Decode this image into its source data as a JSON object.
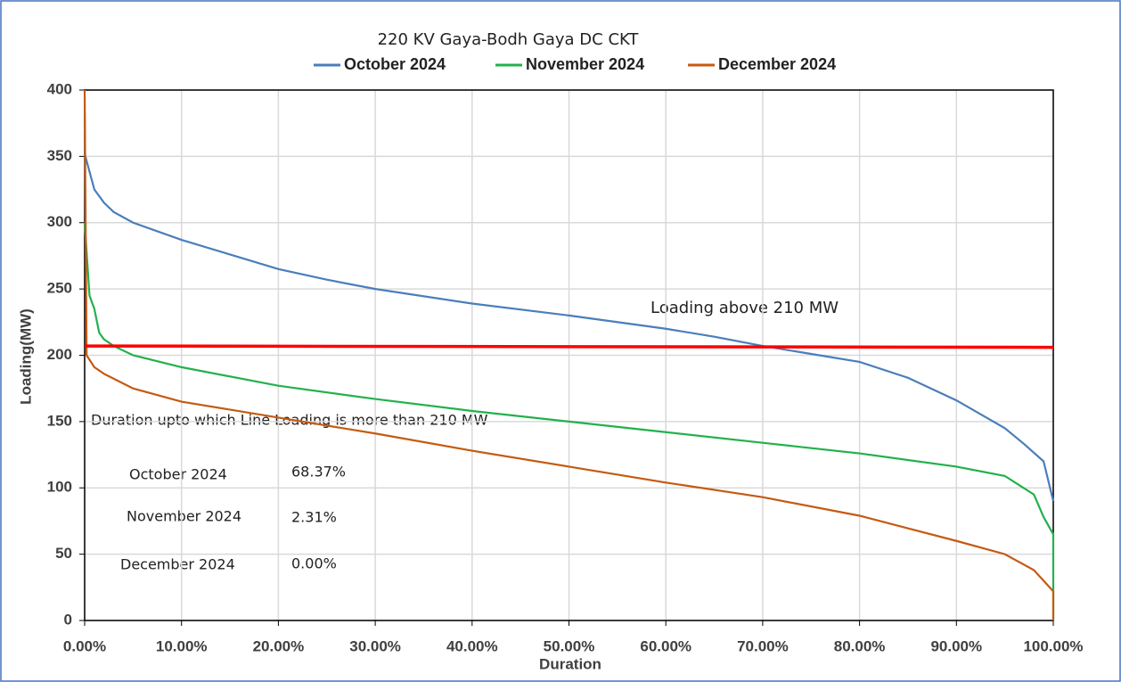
{
  "chart_data": {
    "type": "line",
    "title": "220 KV Gaya-Bodh Gaya DC CKT",
    "x_label": "Duration",
    "y_label": "Loading(MW)",
    "xlim": [
      0,
      100
    ],
    "ylim": [
      0,
      400
    ],
    "xticks": [
      {
        "value": 0,
        "label": "0.00%"
      },
      {
        "value": 10,
        "label": "10.00%"
      },
      {
        "value": 20,
        "label": "20.00%"
      },
      {
        "value": 30,
        "label": "30.00%"
      },
      {
        "value": 40,
        "label": "40.00%"
      },
      {
        "value": 50,
        "label": "50.00%"
      },
      {
        "value": 60,
        "label": "60.00%"
      },
      {
        "value": 70,
        "label": "70.00%"
      },
      {
        "value": 80,
        "label": "80.00%"
      },
      {
        "value": 90,
        "label": "90.00%"
      },
      {
        "value": 100,
        "label": "100.00%"
      }
    ],
    "yticks": [
      0,
      50,
      100,
      150,
      200,
      250,
      300,
      350,
      400
    ],
    "grid": true,
    "legend": "top",
    "series": [
      {
        "name": "October 2024",
        "color": "#4a7ebb",
        "x": [
          0,
          1,
          2,
          3,
          5,
          10,
          15,
          20,
          25,
          30,
          40,
          50,
          60,
          65,
          70,
          75,
          80,
          85,
          90,
          95,
          97,
          99,
          100
        ],
        "values": [
          352,
          325,
          315,
          308,
          300,
          287,
          276,
          265,
          257,
          250,
          239,
          230,
          220,
          214,
          207,
          201,
          195,
          183,
          166,
          145,
          133,
          120,
          90
        ]
      },
      {
        "name": "November 2024",
        "color": "#22b14c",
        "x": [
          0,
          0.5,
          1,
          1.5,
          2,
          3,
          5,
          10,
          20,
          30,
          40,
          50,
          60,
          70,
          80,
          90,
          95,
          98,
          99,
          100,
          100
        ],
        "values": [
          300,
          245,
          235,
          217,
          212,
          207,
          200,
          191,
          177,
          167,
          158,
          150,
          142,
          134,
          126,
          116,
          109,
          95,
          78,
          65,
          0
        ]
      },
      {
        "name": "December 2024",
        "color": "#c55a11",
        "x": [
          0,
          0.2,
          1,
          2,
          5,
          10,
          20,
          30,
          40,
          50,
          60,
          70,
          80,
          90,
          95,
          98,
          99,
          100,
          100
        ],
        "values": [
          400,
          200,
          191,
          186,
          175,
          165,
          153,
          141,
          128,
          116,
          104,
          93,
          79,
          60,
          50,
          38,
          30,
          22,
          0
        ]
      }
    ],
    "reference_line": {
      "color": "#ff0000",
      "x": [
        0,
        100
      ],
      "values": [
        207,
        206
      ]
    },
    "annotations": [
      "Loading above 210 MW",
      "Duration upto which Line Loading is more than 210 MW",
      "October 2024",
      "68.37%",
      "November 2024",
      "2.31%",
      "December 2024",
      "0.00%"
    ]
  }
}
